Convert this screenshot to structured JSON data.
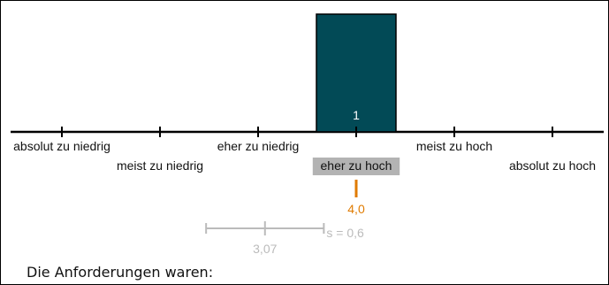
{
  "chart_data": {
    "type": "bar",
    "categories": [
      "absolut zu niedrig",
      "meist zu niedrig",
      "eher zu niedrig",
      "eher zu hoch",
      "meist zu hoch",
      "absolut zu hoch"
    ],
    "values": [
      0,
      0,
      0,
      1,
      0,
      0
    ],
    "bar_labels": [
      "",
      "",
      "",
      "1",
      "",
      ""
    ],
    "highlighted_category": "eher zu hoch",
    "mean": {
      "value": 4.0,
      "label": "4,0"
    },
    "comparison": {
      "mean": 3.07,
      "mean_label": "3,07",
      "sd": 0.6,
      "sd_label": "s = 0,6"
    },
    "xlim": [
      0.5,
      6.5
    ],
    "colors": {
      "bar": "#024a56",
      "highlight": "#b3b3b3",
      "mean": "#e07b00",
      "comparison": "#bbbbbb",
      "axis": "#000000"
    },
    "title": "",
    "xlabel": "",
    "ylabel": ""
  },
  "footer": {
    "text": "Die Anforderungen waren:"
  }
}
